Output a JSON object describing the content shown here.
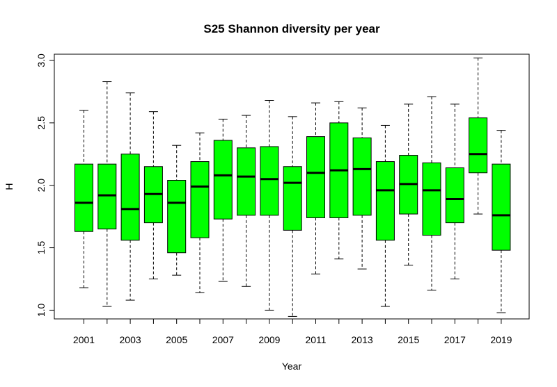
{
  "chart_data": {
    "type": "boxplot",
    "title": "S25 Shannon diversity per year",
    "xlabel": "Year",
    "ylabel": "H",
    "ylim": [
      0.93,
      3.05
    ],
    "yticks": [
      1.0,
      1.5,
      2.0,
      2.5,
      3.0
    ],
    "ytick_labels": [
      "1.0",
      "1.5",
      "2.0",
      "2.5",
      "3.0"
    ],
    "xtick_labels": [
      "2001",
      "2003",
      "2005",
      "2007",
      "2009",
      "2011",
      "2013",
      "2015",
      "2017",
      "2019"
    ],
    "box_color": "#00ff00",
    "grid": false,
    "categories": [
      "2001",
      "2002",
      "2003",
      "2004",
      "2005",
      "2006",
      "2007",
      "2008",
      "2009",
      "2010",
      "2011",
      "2012",
      "2013",
      "2014",
      "2015",
      "2016",
      "2017",
      "2018",
      "2019"
    ],
    "boxes": [
      {
        "min": 1.18,
        "q1": 1.63,
        "median": 1.86,
        "q3": 2.17,
        "max": 2.6
      },
      {
        "min": 1.03,
        "q1": 1.65,
        "median": 1.92,
        "q3": 2.17,
        "max": 2.83
      },
      {
        "min": 1.08,
        "q1": 1.56,
        "median": 1.81,
        "q3": 2.25,
        "max": 2.74
      },
      {
        "min": 1.25,
        "q1": 1.7,
        "median": 1.93,
        "q3": 2.15,
        "max": 2.59
      },
      {
        "min": 1.28,
        "q1": 1.46,
        "median": 1.86,
        "q3": 2.04,
        "max": 2.32
      },
      {
        "min": 1.14,
        "q1": 1.58,
        "median": 1.99,
        "q3": 2.19,
        "max": 2.42
      },
      {
        "min": 1.23,
        "q1": 1.73,
        "median": 2.08,
        "q3": 2.36,
        "max": 2.53
      },
      {
        "min": 1.19,
        "q1": 1.76,
        "median": 2.07,
        "q3": 2.3,
        "max": 2.56
      },
      {
        "min": 1.0,
        "q1": 1.76,
        "median": 2.05,
        "q3": 2.31,
        "max": 2.68
      },
      {
        "min": 0.95,
        "q1": 1.64,
        "median": 2.02,
        "q3": 2.15,
        "max": 2.55
      },
      {
        "min": 1.29,
        "q1": 1.74,
        "median": 2.1,
        "q3": 2.39,
        "max": 2.66
      },
      {
        "min": 1.41,
        "q1": 1.74,
        "median": 2.12,
        "q3": 2.5,
        "max": 2.67
      },
      {
        "min": 1.33,
        "q1": 1.76,
        "median": 2.13,
        "q3": 2.38,
        "max": 2.62
      },
      {
        "min": 1.03,
        "q1": 1.56,
        "median": 1.96,
        "q3": 2.19,
        "max": 2.48
      },
      {
        "min": 1.36,
        "q1": 1.77,
        "median": 2.01,
        "q3": 2.24,
        "max": 2.65
      },
      {
        "min": 1.16,
        "q1": 1.6,
        "median": 1.96,
        "q3": 2.18,
        "max": 2.71
      },
      {
        "min": 1.25,
        "q1": 1.7,
        "median": 1.89,
        "q3": 2.14,
        "max": 2.65
      },
      {
        "min": 1.77,
        "q1": 2.1,
        "median": 2.25,
        "q3": 2.54,
        "max": 3.02
      },
      {
        "min": 0.98,
        "q1": 1.48,
        "median": 1.76,
        "q3": 2.17,
        "max": 2.44
      }
    ]
  }
}
